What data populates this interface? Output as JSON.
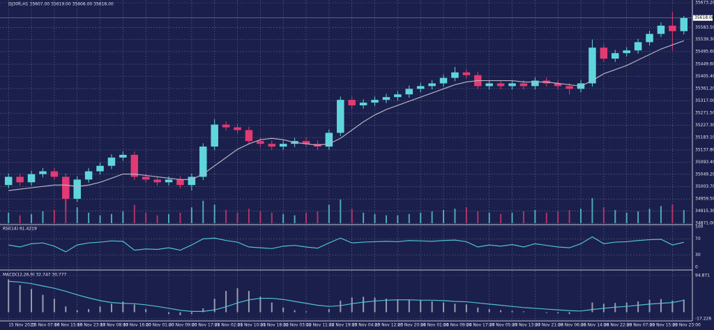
{
  "chart_data": [
    {
      "type": "candlestick",
      "title": "DJ30ft,H1  35607.00 35619.00 35606.00 35618.00",
      "categories": [
        "15 Nov 2023",
        null,
        "16 Nov 07:00",
        null,
        "16 Nov 15:00",
        null,
        "16 Nov 23:00",
        null,
        "17 Nov 08:00",
        null,
        "17 Nov 16:00",
        null,
        "20 Nov 01:00",
        null,
        "20 Nov 09:00",
        null,
        "20 Nov 17:00",
        null,
        "21 Nov 02:00",
        null,
        "21 Nov 10:00",
        null,
        "21 Nov 18:00",
        null,
        "22 Nov 03:00",
        null,
        "22 Nov 11:00",
        null,
        "22 Nov 19:00",
        null,
        "23 Nov 04:00",
        null,
        "23 Nov 12:00",
        null,
        "23 Nov 20:00",
        null,
        "24 Nov 01:00",
        null,
        "24 Nov 09:00",
        null,
        "24 Nov 17:00",
        null,
        "27 Nov 05:00",
        null,
        "27 Nov 13:00",
        null,
        "27 Nov 21:00",
        null,
        "28 Nov 06:00",
        null,
        "28 Nov 14:00",
        null,
        "28 Nov 22:00",
        null,
        "29 Nov 07:00",
        null,
        "29 Nov 15:00",
        null,
        "29 Nov 23:00",
        null
      ],
      "open": [
        35010,
        35040,
        35020,
        35050,
        35060,
        35040,
        34960,
        35030,
        35060,
        35080,
        35110,
        35120,
        35040,
        35030,
        35020,
        35030,
        35010,
        35040,
        35150,
        35230,
        35220,
        35210,
        35170,
        35160,
        35150,
        35160,
        35170,
        35160,
        35150,
        35200,
        35320,
        35300,
        35310,
        35320,
        35330,
        35340,
        35360,
        35370,
        35380,
        35400,
        35420,
        35410,
        35370,
        35380,
        35370,
        35380,
        35370,
        35390,
        35380,
        35370,
        35360,
        35380,
        35510,
        35470,
        35490,
        35500,
        35530,
        35560,
        35590,
        35570
      ],
      "high": [
        35052,
        35052,
        35062,
        35072,
        35072,
        35052,
        35042,
        35072,
        35092,
        35122,
        35132,
        35132,
        35052,
        35042,
        35042,
        35042,
        35052,
        35162,
        35250,
        35242,
        35232,
        35222,
        35182,
        35172,
        35172,
        35182,
        35182,
        35172,
        35212,
        35332,
        35332,
        35322,
        35332,
        35342,
        35352,
        35372,
        35382,
        35392,
        35412,
        35440,
        35432,
        35422,
        35392,
        35392,
        35392,
        35392,
        35402,
        35402,
        35392,
        35382,
        35392,
        35540,
        35522,
        35502,
        35512,
        35542,
        35572,
        35602,
        35640,
        35625
      ],
      "low": [
        34998,
        35008,
        35008,
        35038,
        35028,
        34920,
        34948,
        35018,
        35048,
        35068,
        35098,
        35028,
        35018,
        35008,
        35008,
        34998,
        34990,
        35028,
        35138,
        35208,
        35198,
        35158,
        35148,
        35138,
        35138,
        35148,
        35148,
        35138,
        35138,
        35188,
        35288,
        35288,
        35298,
        35308,
        35318,
        35328,
        35348,
        35358,
        35368,
        35388,
        35398,
        35358,
        35358,
        35358,
        35358,
        35358,
        35358,
        35368,
        35358,
        35340,
        35348,
        35368,
        35458,
        35458,
        35478,
        35488,
        35518,
        35548,
        35500,
        35558
      ],
      "close": [
        35040,
        35020,
        35050,
        35060,
        35040,
        34960,
        35030,
        35060,
        35080,
        35110,
        35120,
        35040,
        35030,
        35020,
        35030,
        35010,
        35040,
        35150,
        35230,
        35220,
        35210,
        35170,
        35160,
        35150,
        35160,
        35170,
        35160,
        35150,
        35200,
        35320,
        35300,
        35310,
        35320,
        35330,
        35340,
        35360,
        35370,
        35380,
        35400,
        35420,
        35410,
        35370,
        35380,
        35370,
        35380,
        35370,
        35390,
        35380,
        35370,
        35360,
        35380,
        35510,
        35470,
        35490,
        35500,
        35530,
        35560,
        35590,
        35570,
        35618
      ],
      "ma": [
        34990,
        34995,
        35000,
        35005,
        35010,
        35010,
        35005,
        35010,
        35020,
        35035,
        35050,
        35050,
        35045,
        35040,
        35035,
        35030,
        35030,
        35050,
        35080,
        35110,
        35140,
        35160,
        35175,
        35180,
        35175,
        35165,
        35160,
        35155,
        35160,
        35180,
        35210,
        35240,
        35265,
        35285,
        35300,
        35315,
        35330,
        35345,
        35360,
        35375,
        35385,
        35390,
        35390,
        35390,
        35390,
        35385,
        35385,
        35385,
        35380,
        35375,
        35370,
        35390,
        35415,
        35430,
        35445,
        35465,
        35485,
        35505,
        35520,
        35535
      ],
      "volumes": [
        40,
        30,
        35,
        45,
        50,
        90,
        60,
        40,
        30,
        35,
        45,
        70,
        40,
        30,
        35,
        40,
        60,
        85,
        70,
        50,
        40,
        55,
        45,
        40,
        35,
        30,
        40,
        45,
        70,
        90,
        55,
        40,
        35,
        30,
        30,
        35,
        40,
        45,
        50,
        55,
        60,
        45,
        40,
        35,
        40,
        45,
        50,
        40,
        45,
        50,
        55,
        95,
        60,
        50,
        40,
        45,
        55,
        65,
        70,
        50
      ],
      "up_color": "#5fd6dc",
      "down_color": "#e23a72",
      "ma_color": "#b4b4c4",
      "last_price": {
        "value": 35618,
        "label": "35618.00"
      },
      "ylim": [
        34871,
        35673.2
      ],
      "yticks": [
        {
          "value": 34871,
          "label": "34871.00"
        },
        {
          "value": 34915.3,
          "label": "34915.30"
        },
        {
          "value": 34959.5,
          "label": "34959.50"
        },
        {
          "value": 35003.7,
          "label": "35003.70"
        },
        {
          "value": 35049.2,
          "label": "35049.20"
        },
        {
          "value": 35093.4,
          "label": "35093.40"
        },
        {
          "value": 35137.8,
          "label": "35137.80"
        },
        {
          "value": 35183.1,
          "label": "35183.10"
        },
        {
          "value": 35227.3,
          "label": "35227.30"
        },
        {
          "value": 35271.5,
          "label": "35271.50"
        },
        {
          "value": 35317,
          "label": "35317.00"
        },
        {
          "value": 35361.2,
          "label": "35361.20"
        },
        {
          "value": 35405.4,
          "label": "35405.40"
        },
        {
          "value": 35449.6,
          "label": "35449.60"
        },
        {
          "value": 35495.6,
          "label": "35495.60"
        },
        {
          "value": 35539.3,
          "label": "35539.30"
        },
        {
          "value": 35583.5,
          "label": "35583.50"
        },
        {
          "value": 35673.2,
          "label": "35673.20"
        }
      ],
      "grid": true
    },
    {
      "type": "line",
      "title": "RSI(14) 61.4219",
      "color": "#4fc3d8",
      "values": [
        55,
        50,
        58,
        60,
        52,
        38,
        55,
        60,
        62,
        65,
        64,
        42,
        45,
        44,
        48,
        42,
        55,
        70,
        72,
        66,
        62,
        50,
        48,
        46,
        52,
        54,
        50,
        47,
        60,
        72,
        60,
        62,
        63,
        64,
        63,
        66,
        65,
        64,
        66,
        67,
        63,
        50,
        55,
        52,
        56,
        50,
        58,
        54,
        50,
        48,
        58,
        75,
        58,
        62,
        63,
        66,
        68,
        69,
        55,
        61.4219
      ],
      "ylim": [
        0,
        100
      ],
      "yticks": [
        0,
        30,
        70,
        100
      ]
    },
    {
      "type": "macd",
      "title": "MACD(12,26,9) 32.747 30.777",
      "color": "#4fc3d8",
      "hist_color": "#9a9cb0",
      "values": [
        85,
        70,
        60,
        45,
        35,
        15,
        5,
        8,
        15,
        22,
        28,
        20,
        8,
        0,
        -5,
        -8,
        -5,
        10,
        35,
        55,
        62,
        55,
        40,
        25,
        12,
        5,
        2,
        0,
        8,
        30,
        38,
        40,
        38,
        35,
        33,
        32,
        30,
        28,
        25,
        22,
        20,
        12,
        8,
        5,
        3,
        2,
        0,
        -2,
        -3,
        -5,
        0,
        25,
        22,
        24,
        25,
        28,
        32,
        34,
        30,
        32.747
      ],
      "signal": [
        80,
        78,
        74,
        68,
        62,
        54,
        45,
        37,
        30,
        25,
        23,
        22,
        19,
        15,
        10,
        5,
        2,
        2,
        6,
        14,
        24,
        32,
        36,
        36,
        33,
        28,
        23,
        18,
        15,
        17,
        22,
        26,
        29,
        31,
        32,
        32,
        31,
        31,
        30,
        28,
        27,
        24,
        21,
        18,
        15,
        12,
        10,
        8,
        6,
        4,
        3,
        7,
        10,
        13,
        15,
        18,
        21,
        23,
        25,
        30.777
      ],
      "ylim": [
        -17.226,
        94.871
      ],
      "yticks": [
        -17.226,
        94.871
      ]
    }
  ]
}
